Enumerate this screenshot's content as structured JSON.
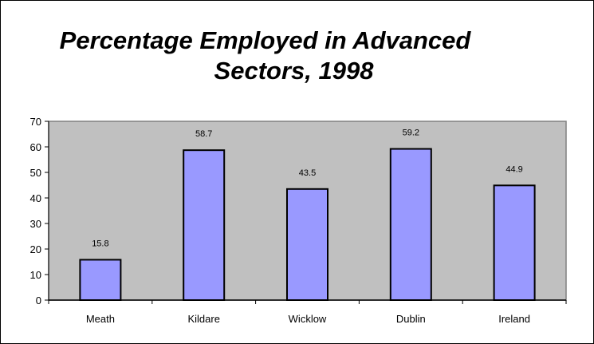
{
  "chart_data": {
    "type": "bar",
    "title_lines": [
      "Percentage Employed in Advanced",
      "Sectors, 1998"
    ],
    "categories": [
      "Meath",
      "Kildare",
      "Wicklow",
      "Dublin",
      "Ireland"
    ],
    "values": [
      15.8,
      58.7,
      43.5,
      59.2,
      44.9
    ],
    "data_labels": [
      "15.8",
      "58.7",
      "43.5",
      "59.2",
      "44.9"
    ],
    "ylim": [
      0,
      70
    ],
    "yticks": [
      0,
      10,
      20,
      30,
      40,
      50,
      60,
      70
    ],
    "xlabel": "",
    "ylabel": "",
    "grid": false,
    "legend": "none",
    "colors": {
      "bar_fill": "#9999ff",
      "bar_stroke": "#000000",
      "plot_background": "#c0c0c0",
      "plot_border": "#808080"
    }
  }
}
